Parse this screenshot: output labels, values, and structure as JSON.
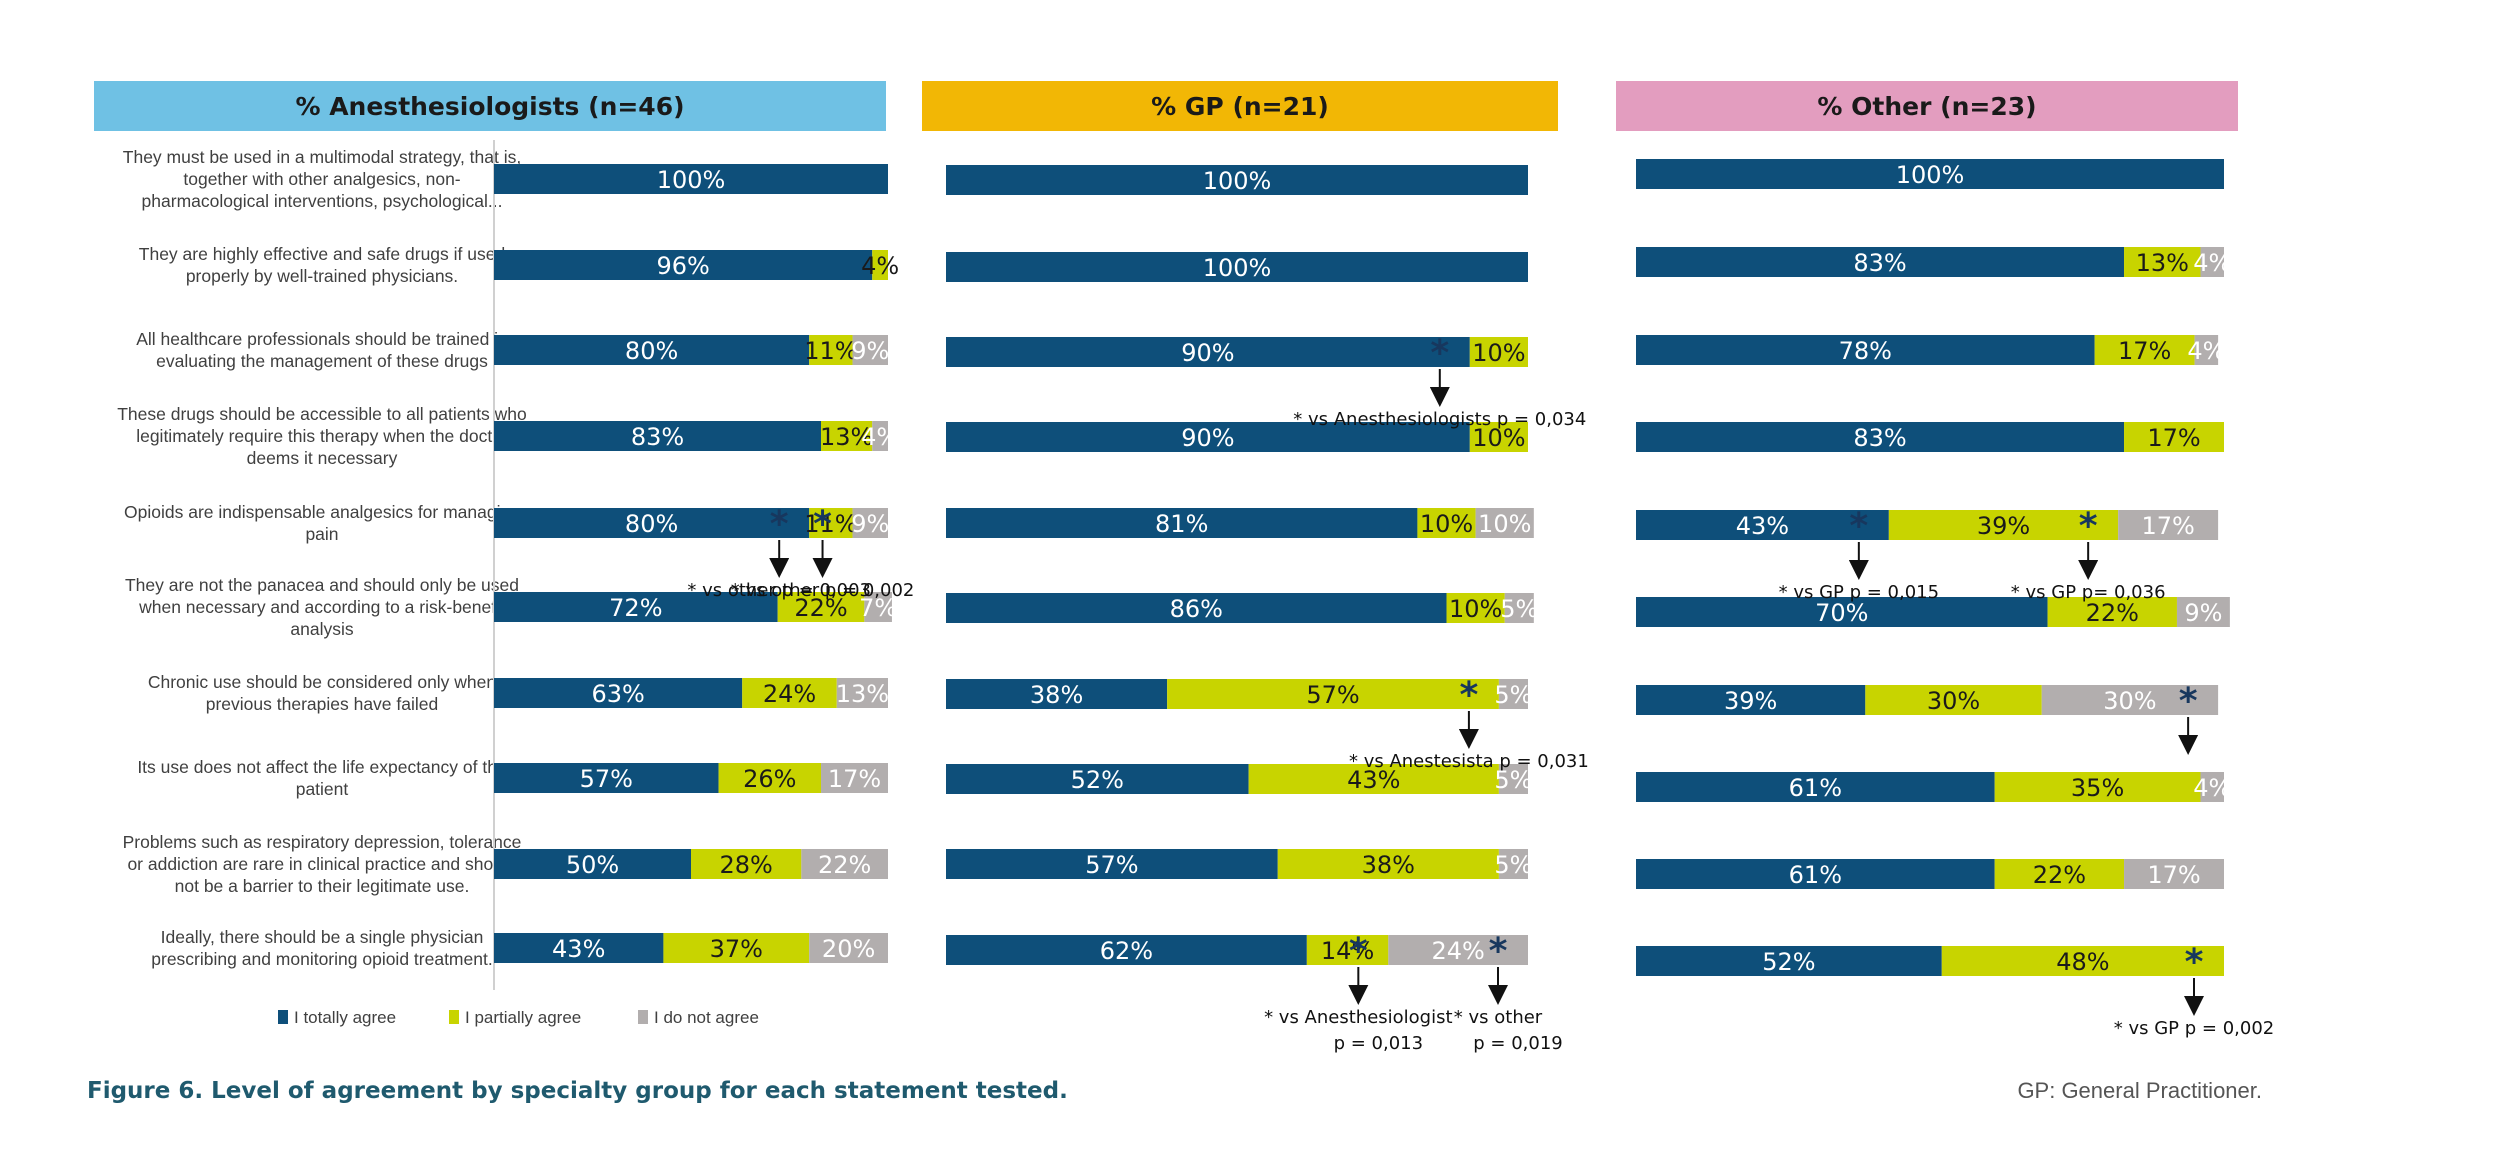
{
  "colors": {
    "agree": "#0e4f7a",
    "partial": "#c8d400",
    "disagree": "#b2aeae",
    "header_anest": "#6fc1e4",
    "header_gp": "#f2b705",
    "header_other": "#e39dbf"
  },
  "legend": [
    "I totally agree",
    "I partially agree",
    "I do not agree"
  ],
  "caption": "Figure 6. Level of agreement by specialty group for each statement tested.",
  "footnote": "GP: General Practitioner.",
  "statements": [
    [
      "They must be used in a multimodal strategy, that is,",
      "together with other analgesics, non-",
      "pharmacological interventions, psychological..."
    ],
    [
      "They are highly effective and safe drugs if used",
      "properly by well-trained physicians."
    ],
    [
      "All healthcare professionals should be trained in",
      "evaluating the management of these drugs"
    ],
    [
      "These drugs should be accessible to all patients who",
      "legitimately require this therapy when the doctor",
      "deems it necessary"
    ],
    [
      "Opioids are indispensable analgesics for managing",
      "pain"
    ],
    [
      "They are not the panacea and should only be used",
      "when necessary and according to a risk-benefit",
      "analysis"
    ],
    [
      "Chronic use should be considered only when",
      "previous therapies have failed"
    ],
    [
      "Its use does not affect the life expectancy of the",
      "patient"
    ],
    [
      "Problems such as respiratory depression, tolerance",
      "or addiction are rare in clinical practice and should",
      "not be a barrier to their legitimate use."
    ],
    [
      "Ideally, there should be a single physician",
      "prescribing and monitoring opioid treatment."
    ]
  ],
  "chart_data": [
    {
      "type": "bar",
      "title": "% Anesthesiologists (n=46)",
      "series": [
        {
          "name": "I totally agree",
          "values": [
            100,
            96,
            80,
            83,
            80,
            72,
            63,
            57,
            50,
            43
          ]
        },
        {
          "name": "I partially agree",
          "values": [
            0,
            4,
            11,
            13,
            11,
            22,
            24,
            26,
            28,
            37
          ]
        },
        {
          "name": "I do not agree",
          "values": [
            0,
            0,
            9,
            4,
            9,
            7,
            13,
            17,
            22,
            20
          ]
        }
      ],
      "annotations": [
        {
          "row": 4,
          "segment": 0,
          "text": "* vs  other  p = 0,003"
        },
        {
          "row": 4,
          "segment": 1,
          "text": "* vs  other  p = 0,002"
        }
      ]
    },
    {
      "type": "bar",
      "title": "% GP (n=21)",
      "series": [
        {
          "name": "I totally agree",
          "values": [
            100,
            100,
            90,
            90,
            81,
            86,
            38,
            52,
            57,
            62
          ]
        },
        {
          "name": "I partially agree",
          "values": [
            0,
            0,
            10,
            10,
            10,
            10,
            57,
            43,
            38,
            14
          ]
        },
        {
          "name": "I do not agree",
          "values": [
            0,
            0,
            0,
            0,
            10,
            5,
            5,
            5,
            5,
            24
          ]
        }
      ],
      "annotations": [
        {
          "row": 2,
          "segment": 0,
          "text": "* vs Anesthesiologists p = 0,034"
        },
        {
          "row": 6,
          "segment": 1,
          "text": "* vs Anestesista p = 0,031"
        },
        {
          "row": 9,
          "segment": 1,
          "text": "* vs Anesthesiologist",
          "text2": "p = 0,013"
        },
        {
          "row": 9,
          "segment": 2,
          "text": "* vs other",
          "text2": "p = 0,019"
        }
      ]
    },
    {
      "type": "bar",
      "title": "% Other (n=23)",
      "series": [
        {
          "name": "I totally agree",
          "values": [
            100,
            83,
            78,
            83,
            43,
            70,
            39,
            61,
            61,
            52
          ]
        },
        {
          "name": "I partially agree",
          "values": [
            0,
            13,
            17,
            17,
            39,
            22,
            30,
            35,
            22,
            48
          ]
        },
        {
          "name": "I do not agree",
          "values": [
            0,
            4,
            4,
            0,
            17,
            9,
            30,
            4,
            17,
            0
          ]
        }
      ],
      "annotations": [
        {
          "row": 4,
          "segment": 0,
          "text": "* vs  GP p = 0,015"
        },
        {
          "row": 4,
          "segment": 1,
          "text": "* vs GP  p= 0,036"
        },
        {
          "row": 6,
          "segment": 2,
          "text": ""
        },
        {
          "row": 9,
          "segment": 1,
          "text": "* vs GP  p = 0,002"
        }
      ]
    }
  ]
}
